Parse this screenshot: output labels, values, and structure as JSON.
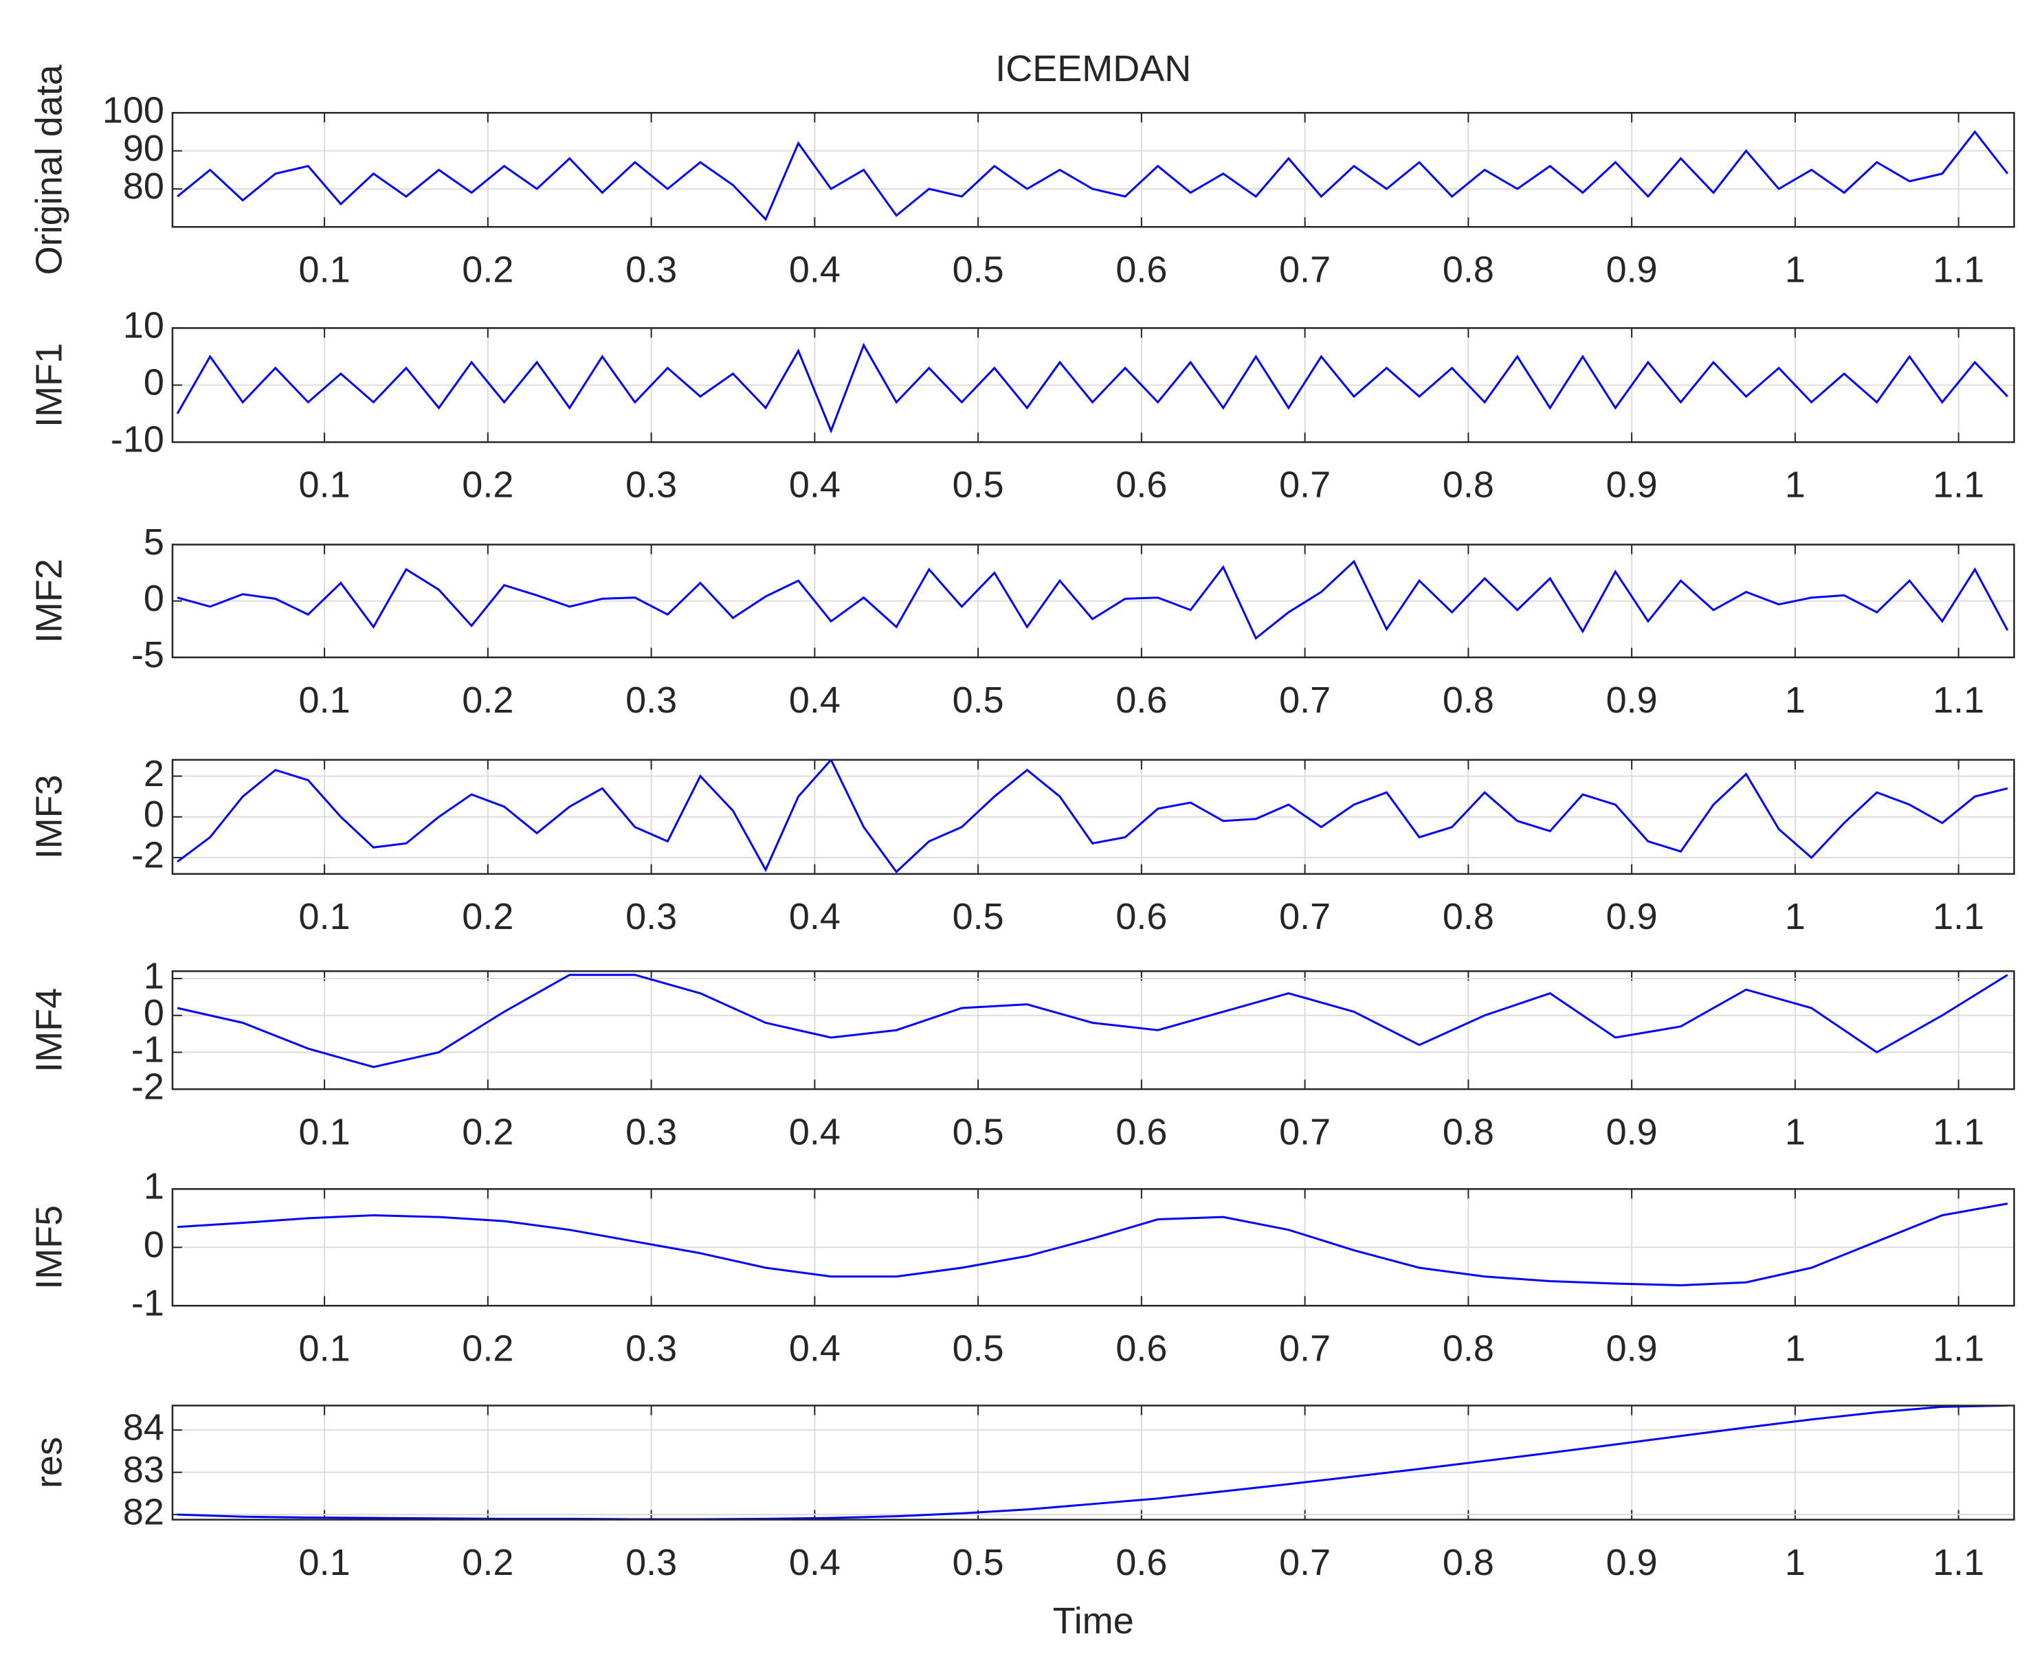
{
  "chart_data": [
    {
      "type": "line",
      "title": "ICEEMDAN",
      "ylabel": "Original data",
      "grid": true,
      "xlim": [
        0.007,
        1.134
      ],
      "ylim": [
        70,
        100
      ],
      "xticks": [
        0.1,
        0.2,
        0.3,
        0.4,
        0.5,
        0.6,
        0.7,
        0.8,
        0.9,
        1,
        1.1
      ],
      "yticks": [
        80,
        90,
        100
      ],
      "color": "#0000ff",
      "x": [
        0.01,
        0.03,
        0.05,
        0.07,
        0.09,
        0.11,
        0.13,
        0.15,
        0.17,
        0.19,
        0.21,
        0.23,
        0.25,
        0.27,
        0.29,
        0.31,
        0.33,
        0.35,
        0.37,
        0.39,
        0.41,
        0.43,
        0.45,
        0.47,
        0.49,
        0.51,
        0.53,
        0.55,
        0.57,
        0.59,
        0.61,
        0.63,
        0.65,
        0.67,
        0.69,
        0.71,
        0.73,
        0.75,
        0.77,
        0.79,
        0.81,
        0.83,
        0.85,
        0.87,
        0.89,
        0.91,
        0.93,
        0.95,
        0.97,
        0.99,
        1.01,
        1.03,
        1.05,
        1.07,
        1.09,
        1.11,
        1.13
      ],
      "values": [
        78,
        85,
        77,
        84,
        86,
        76,
        84,
        78,
        85,
        79,
        86,
        80,
        88,
        79,
        87,
        80,
        87,
        81,
        72,
        92,
        80,
        85,
        73,
        80,
        78,
        86,
        80,
        85,
        80,
        78,
        86,
        79,
        84,
        78,
        88,
        78,
        86,
        80,
        87,
        78,
        85,
        80,
        86,
        79,
        87,
        78,
        88,
        79,
        90,
        80,
        85,
        79,
        87,
        82,
        84,
        95,
        84
      ]
    },
    {
      "type": "line",
      "ylabel": "IMF1",
      "grid": true,
      "xlim": [
        0.007,
        1.134
      ],
      "ylim": [
        -10,
        10
      ],
      "xticks": [
        0.1,
        0.2,
        0.3,
        0.4,
        0.5,
        0.6,
        0.7,
        0.8,
        0.9,
        1,
        1.1
      ],
      "yticks": [
        -10,
        0,
        10
      ],
      "color": "#0000ff",
      "x": [
        0.01,
        0.03,
        0.05,
        0.07,
        0.09,
        0.11,
        0.13,
        0.15,
        0.17,
        0.19,
        0.21,
        0.23,
        0.25,
        0.27,
        0.29,
        0.31,
        0.33,
        0.35,
        0.37,
        0.39,
        0.41,
        0.43,
        0.45,
        0.47,
        0.49,
        0.51,
        0.53,
        0.55,
        0.57,
        0.59,
        0.61,
        0.63,
        0.65,
        0.67,
        0.69,
        0.71,
        0.73,
        0.75,
        0.77,
        0.79,
        0.81,
        0.83,
        0.85,
        0.87,
        0.89,
        0.91,
        0.93,
        0.95,
        0.97,
        0.99,
        1.01,
        1.03,
        1.05,
        1.07,
        1.09,
        1.11,
        1.13
      ],
      "values": [
        -5,
        5,
        -3,
        3,
        -3,
        2,
        -3,
        3,
        -4,
        4,
        -3,
        4,
        -4,
        5,
        -3,
        3,
        -2,
        2,
        -4,
        6,
        -8,
        7,
        -3,
        3,
        -3,
        3,
        -4,
        4,
        -3,
        3,
        -3,
        4,
        -4,
        5,
        -4,
        5,
        -2,
        3,
        -2,
        3,
        -3,
        5,
        -4,
        5,
        -4,
        4,
        -3,
        4,
        -2,
        3,
        -3,
        2,
        -3,
        5,
        -3,
        4,
        -2
      ]
    },
    {
      "type": "line",
      "ylabel": "IMF2",
      "grid": true,
      "xlim": [
        0.007,
        1.134
      ],
      "ylim": [
        -5,
        5
      ],
      "xticks": [
        0.1,
        0.2,
        0.3,
        0.4,
        0.5,
        0.6,
        0.7,
        0.8,
        0.9,
        1,
        1.1
      ],
      "yticks": [
        -5,
        0,
        5
      ],
      "color": "#0000ff",
      "x": [
        0.01,
        0.03,
        0.05,
        0.07,
        0.09,
        0.11,
        0.13,
        0.15,
        0.17,
        0.19,
        0.21,
        0.23,
        0.25,
        0.27,
        0.29,
        0.31,
        0.33,
        0.35,
        0.37,
        0.39,
        0.41,
        0.43,
        0.45,
        0.47,
        0.49,
        0.51,
        0.53,
        0.55,
        0.57,
        0.59,
        0.61,
        0.63,
        0.65,
        0.67,
        0.69,
        0.71,
        0.73,
        0.75,
        0.77,
        0.79,
        0.81,
        0.83,
        0.85,
        0.87,
        0.89,
        0.91,
        0.93,
        0.95,
        0.97,
        0.99,
        1.01,
        1.03,
        1.05,
        1.07,
        1.09,
        1.11,
        1.13
      ],
      "values": [
        0.3,
        -0.5,
        0.6,
        0.2,
        -1.2,
        1.6,
        -2.3,
        2.8,
        1.0,
        -2.2,
        1.4,
        0.5,
        -0.5,
        0.2,
        0.3,
        -1.2,
        1.6,
        -1.5,
        0.4,
        1.8,
        -1.8,
        0.3,
        -2.3,
        2.8,
        -0.5,
        2.5,
        -2.3,
        1.8,
        -1.6,
        0.2,
        0.3,
        -0.8,
        3.0,
        -3.3,
        -1.0,
        0.8,
        3.5,
        -2.5,
        1.8,
        -1.0,
        2.0,
        -0.8,
        2.0,
        -2.7,
        2.6,
        -1.8,
        1.8,
        -0.8,
        0.8,
        -0.3,
        0.3,
        0.5,
        -1.0,
        1.8,
        -1.8,
        2.8,
        -2.6
      ]
    },
    {
      "type": "line",
      "ylabel": "IMF3",
      "grid": true,
      "xlim": [
        0.007,
        1.134
      ],
      "ylim": [
        -2.8,
        2.8
      ],
      "xticks": [
        0.1,
        0.2,
        0.3,
        0.4,
        0.5,
        0.6,
        0.7,
        0.8,
        0.9,
        1,
        1.1
      ],
      "yticks": [
        -2,
        0,
        2
      ],
      "color": "#0000ff",
      "x": [
        0.01,
        0.03,
        0.05,
        0.07,
        0.09,
        0.11,
        0.13,
        0.15,
        0.17,
        0.19,
        0.21,
        0.23,
        0.25,
        0.27,
        0.29,
        0.31,
        0.33,
        0.35,
        0.37,
        0.39,
        0.41,
        0.43,
        0.45,
        0.47,
        0.49,
        0.51,
        0.53,
        0.55,
        0.57,
        0.59,
        0.61,
        0.63,
        0.65,
        0.67,
        0.69,
        0.71,
        0.73,
        0.75,
        0.77,
        0.79,
        0.81,
        0.83,
        0.85,
        0.87,
        0.89,
        0.91,
        0.93,
        0.95,
        0.97,
        0.99,
        1.01,
        1.03,
        1.05,
        1.07,
        1.09,
        1.11,
        1.13
      ],
      "values": [
        -2.2,
        -1.0,
        1.0,
        2.3,
        1.8,
        0.0,
        -1.5,
        -1.3,
        0.0,
        1.1,
        0.5,
        -0.8,
        0.5,
        1.4,
        -0.5,
        -1.2,
        2.0,
        0.3,
        -2.6,
        1.0,
        2.8,
        -0.5,
        -2.7,
        -1.2,
        -0.5,
        1.0,
        2.3,
        1.0,
        -1.3,
        -1.0,
        0.4,
        0.7,
        -0.2,
        -0.1,
        0.6,
        -0.5,
        0.6,
        1.2,
        -1.0,
        -0.5,
        1.2,
        -0.2,
        -0.7,
        1.1,
        0.6,
        -1.2,
        -1.7,
        0.6,
        2.1,
        -0.6,
        -2.0,
        -0.3,
        1.2,
        0.6,
        -0.3,
        1.0,
        1.4
      ]
    },
    {
      "type": "line",
      "ylabel": "IMF4",
      "grid": true,
      "xlim": [
        0.007,
        1.134
      ],
      "ylim": [
        -2,
        1.2
      ],
      "xticks": [
        0.1,
        0.2,
        0.3,
        0.4,
        0.5,
        0.6,
        0.7,
        0.8,
        0.9,
        1,
        1.1
      ],
      "yticks": [
        -2,
        -1,
        0,
        1
      ],
      "color": "#0000ff",
      "x": [
        0.01,
        0.05,
        0.09,
        0.13,
        0.17,
        0.21,
        0.25,
        0.29,
        0.33,
        0.37,
        0.41,
        0.45,
        0.49,
        0.53,
        0.57,
        0.61,
        0.65,
        0.69,
        0.73,
        0.77,
        0.81,
        0.85,
        0.89,
        0.93,
        0.97,
        1.01,
        1.05,
        1.09,
        1.13
      ],
      "values": [
        0.2,
        -0.2,
        -0.9,
        -1.4,
        -1.0,
        0.1,
        1.1,
        1.1,
        0.6,
        -0.2,
        -0.6,
        -0.4,
        0.2,
        0.3,
        -0.2,
        -0.4,
        0.1,
        0.6,
        0.1,
        -0.8,
        0.0,
        0.6,
        -0.6,
        -0.3,
        0.7,
        0.2,
        -1.0,
        0.0,
        1.1
      ]
    },
    {
      "type": "line",
      "ylabel": "IMF5",
      "grid": true,
      "xlim": [
        0.007,
        1.134
      ],
      "ylim": [
        -1,
        1
      ],
      "xticks": [
        0.1,
        0.2,
        0.3,
        0.4,
        0.5,
        0.6,
        0.7,
        0.8,
        0.9,
        1,
        1.1
      ],
      "yticks": [
        -1,
        0,
        1
      ],
      "color": "#0000ff",
      "x": [
        0.01,
        0.05,
        0.09,
        0.13,
        0.17,
        0.21,
        0.25,
        0.29,
        0.33,
        0.37,
        0.41,
        0.45,
        0.49,
        0.53,
        0.57,
        0.61,
        0.65,
        0.69,
        0.73,
        0.77,
        0.81,
        0.85,
        0.89,
        0.93,
        0.97,
        1.01,
        1.05,
        1.09,
        1.13
      ],
      "values": [
        0.35,
        0.42,
        0.5,
        0.55,
        0.52,
        0.45,
        0.3,
        0.1,
        -0.1,
        -0.35,
        -0.5,
        -0.5,
        -0.35,
        -0.15,
        0.15,
        0.48,
        0.52,
        0.3,
        -0.05,
        -0.35,
        -0.5,
        -0.58,
        -0.62,
        -0.65,
        -0.6,
        -0.35,
        0.1,
        0.55,
        0.75
      ]
    },
    {
      "type": "line",
      "ylabel": "res",
      "xlabel": "Time",
      "grid": true,
      "xlim": [
        0.007,
        1.134
      ],
      "ylim": [
        81.88,
        84.58
      ],
      "xticks": [
        0.1,
        0.2,
        0.3,
        0.4,
        0.5,
        0.6,
        0.7,
        0.8,
        0.9,
        1,
        1.1
      ],
      "yticks": [
        82,
        83,
        84
      ],
      "color": "#0000ff",
      "x": [
        0.01,
        0.05,
        0.09,
        0.13,
        0.17,
        0.21,
        0.25,
        0.29,
        0.33,
        0.37,
        0.41,
        0.45,
        0.49,
        0.53,
        0.57,
        0.61,
        0.65,
        0.69,
        0.73,
        0.77,
        0.81,
        0.85,
        0.89,
        0.93,
        0.97,
        1.01,
        1.05,
        1.09,
        1.13
      ],
      "values": [
        82.0,
        81.95,
        81.93,
        81.92,
        81.91,
        81.9,
        81.9,
        81.89,
        81.89,
        81.9,
        81.92,
        81.96,
        82.03,
        82.12,
        82.25,
        82.38,
        82.55,
        82.72,
        82.9,
        83.08,
        83.27,
        83.46,
        83.66,
        83.86,
        84.06,
        84.25,
        84.42,
        84.55,
        84.58
      ]
    }
  ]
}
